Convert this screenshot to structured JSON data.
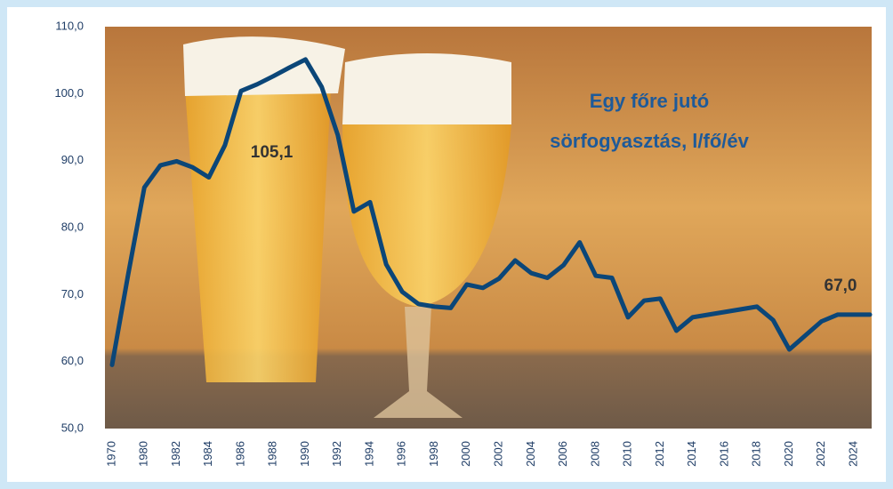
{
  "chart_data": {
    "type": "line",
    "title": [
      "Egy főre jutó",
      "sörfogyasztás, l/fő/év"
    ],
    "categories": [
      "1970",
      null,
      "1980",
      null,
      "1982",
      null,
      "1984",
      null,
      "1986",
      null,
      "1988",
      null,
      "1990",
      null,
      "1992",
      null,
      "1994",
      null,
      "1996",
      null,
      "1998",
      null,
      "2000",
      null,
      "2002",
      null,
      "2004",
      null,
      "2006",
      null,
      "2008",
      null,
      "2010",
      null,
      "2012",
      null,
      "2014",
      null,
      "2016",
      null,
      "2018",
      null,
      "2020",
      null,
      "2022",
      null,
      "2024",
      null
    ],
    "values": [
      59.5,
      73,
      86.0,
      89.3,
      89.9,
      89.0,
      87.5,
      92.3,
      100.4,
      101.4,
      102.6,
      103.9,
      105.1,
      101.0,
      93.8,
      82.4,
      83.8,
      74.5,
      70.4,
      68.6,
      68.2,
      68.0,
      71.5,
      71.0,
      72.4,
      75.1,
      73.2,
      72.5,
      74.4,
      77.8,
      72.8,
      72.5,
      66.6,
      69.1,
      69.4,
      64.6,
      66.6,
      67.0,
      67.4,
      67.8,
      68.2,
      66.2,
      61.8,
      63.9,
      66.0,
      67.0,
      67.0,
      67.0
    ],
    "value_labels": [
      null,
      null,
      null,
      null,
      null,
      null,
      null,
      null,
      null,
      null,
      null,
      null,
      "105,1",
      null,
      null,
      null,
      null,
      null,
      null,
      null,
      null,
      null,
      null,
      null,
      null,
      null,
      null,
      null,
      null,
      null,
      null,
      null,
      null,
      null,
      null,
      null,
      null,
      null,
      null,
      null,
      null,
      null,
      null,
      null,
      null,
      null,
      null,
      "67,0"
    ],
    "color": "#0b4678",
    "ylim": [
      50,
      110
    ],
    "yticks": [
      {
        "value": 50,
        "label": "50,0"
      },
      {
        "value": 60,
        "label": "60,0"
      },
      {
        "value": 70,
        "label": "70,0"
      },
      {
        "value": 80,
        "label": "80,0"
      },
      {
        "value": 90,
        "label": "90,0"
      },
      {
        "value": 100,
        "label": "100,0"
      },
      {
        "value": 110,
        "label": "110,0"
      }
    ]
  }
}
